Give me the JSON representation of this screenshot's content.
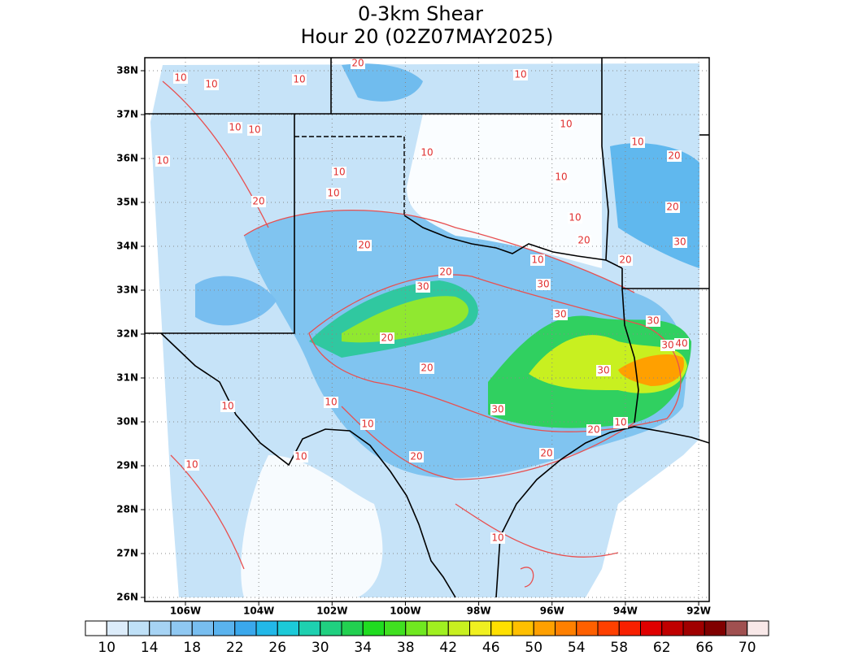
{
  "title": "0-3km Shear",
  "subtitle": "Hour 20 (02Z07MAY2025)",
  "lat_labels": [
    "38N",
    "37N",
    "36N",
    "35N",
    "34N",
    "33N",
    "32N",
    "31N",
    "30N",
    "29N",
    "28N",
    "27N",
    "26N"
  ],
  "lon_labels": [
    "106W",
    "104W",
    "102W",
    "100W",
    "98W",
    "96W",
    "94W",
    "92W"
  ],
  "colorbar": {
    "labels": [
      10,
      14,
      18,
      22,
      26,
      30,
      34,
      38,
      42,
      46,
      50,
      54,
      58,
      62,
      66,
      70
    ],
    "colors": [
      "#ffffff",
      "#dcecfa",
      "#bfe0f7",
      "#a6d3f4",
      "#8fc8f2",
      "#78bef0",
      "#5ab3ee",
      "#3aa8ec",
      "#22b8e8",
      "#1ccad8",
      "#1ed0b0",
      "#20d080",
      "#22d050",
      "#20dc20",
      "#40e020",
      "#70e820",
      "#a0f020",
      "#c8f020",
      "#f0f020",
      "#ffe000",
      "#ffc000",
      "#ffa000",
      "#ff8000",
      "#ff6000",
      "#ff4000",
      "#f82000",
      "#e00000",
      "#c00000",
      "#a00000",
      "#800000",
      "#a05050",
      "#f8e8e8"
    ]
  },
  "contour_labels": [
    10,
    10,
    20,
    10,
    10,
    10,
    10,
    10,
    20,
    10,
    10,
    20,
    10,
    20,
    10,
    10,
    10,
    20,
    10,
    20,
    30,
    20,
    10,
    20,
    30,
    30,
    20,
    30,
    30,
    40,
    30,
    20,
    30,
    20,
    30,
    20,
    10,
    20,
    10,
    10,
    10,
    10,
    10,
    10
  ]
}
